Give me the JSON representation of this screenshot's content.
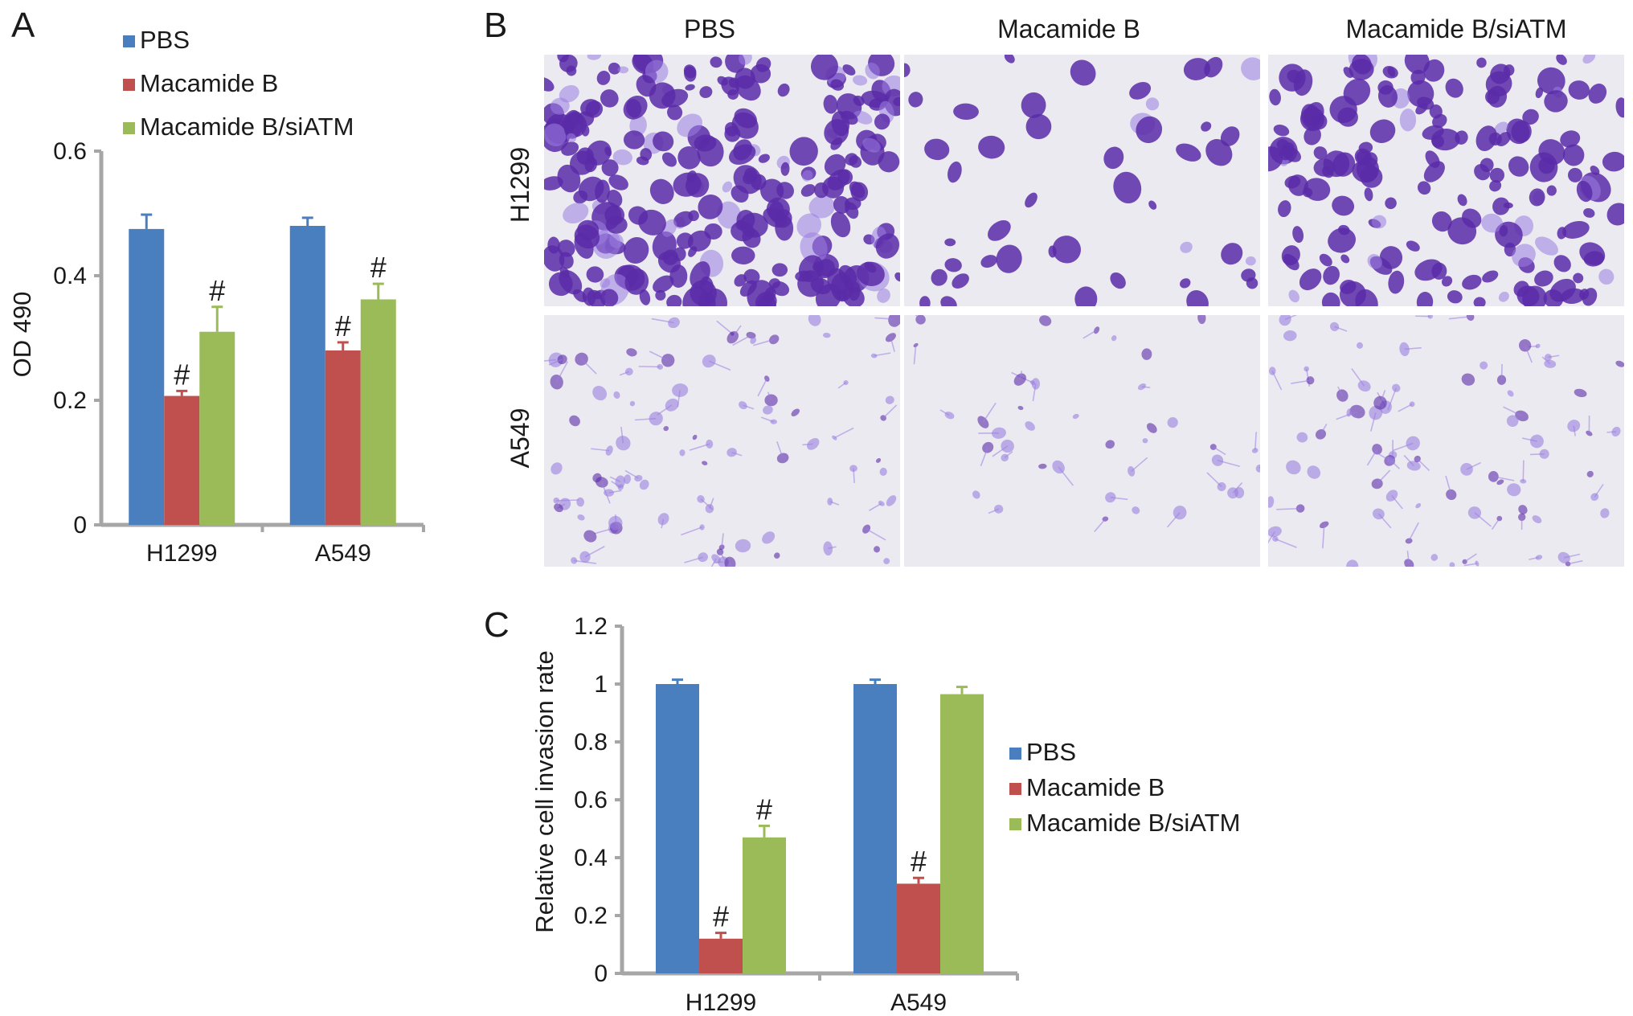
{
  "colors": {
    "pbs": "#4a7fbf",
    "macamide_b": "#c0504d",
    "macamide_b_siatm": "#9bbb59",
    "axis": "#a6a6a6",
    "stain_dark": "#5b2ca8",
    "stain_light": "#9a7ee0",
    "field_bg": "#eceaf1"
  },
  "panels": {
    "a": {
      "letter": "A"
    },
    "b": {
      "letter": "B",
      "columns": [
        "PBS",
        "Macamide B",
        "Macamide B/siATM"
      ],
      "rows": [
        "H1299",
        "A549"
      ]
    },
    "c": {
      "letter": "C"
    }
  },
  "chart_data": [
    {
      "id": "panel-a",
      "type": "bar",
      "title": "",
      "xlabel": "",
      "ylabel": "OD 490",
      "ylim": [
        0,
        0.6
      ],
      "yticks": [
        "0",
        "0.2",
        "0.4",
        "0.6"
      ],
      "categories": [
        "H1299",
        "A549"
      ],
      "legend_position": "top",
      "grid": false,
      "series": [
        {
          "name": "PBS",
          "values": [
            0.475,
            0.48
          ],
          "errors": [
            0.023,
            0.013
          ],
          "marks": [
            "",
            ""
          ]
        },
        {
          "name": "Macamide B",
          "values": [
            0.207,
            0.28
          ],
          "errors": [
            0.008,
            0.013
          ],
          "marks": [
            "#",
            "#"
          ]
        },
        {
          "name": "Macamide B/siATM",
          "values": [
            0.31,
            0.362
          ],
          "errors": [
            0.04,
            0.025
          ],
          "marks": [
            "#",
            "#"
          ]
        }
      ]
    },
    {
      "id": "panel-c",
      "type": "bar",
      "title": "",
      "xlabel": "",
      "ylabel": "Relative cell invasion rate",
      "ylim": [
        0,
        1.2
      ],
      "yticks": [
        "0",
        "0.2",
        "0.4",
        "0.6",
        "0.8",
        "1",
        "1.2"
      ],
      "categories": [
        "H1299",
        "A549"
      ],
      "legend_position": "right",
      "grid": false,
      "series": [
        {
          "name": "PBS",
          "values": [
            1.0,
            1.0
          ],
          "errors": [
            0.015,
            0.015
          ],
          "marks": [
            "",
            ""
          ]
        },
        {
          "name": "Macamide B",
          "values": [
            0.12,
            0.31
          ],
          "errors": [
            0.02,
            0.02
          ],
          "marks": [
            "#",
            "#"
          ]
        },
        {
          "name": "Macamide B/siATM",
          "values": [
            0.47,
            0.965
          ],
          "errors": [
            0.04,
            0.025
          ],
          "marks": [
            "#",
            ""
          ]
        }
      ]
    }
  ]
}
